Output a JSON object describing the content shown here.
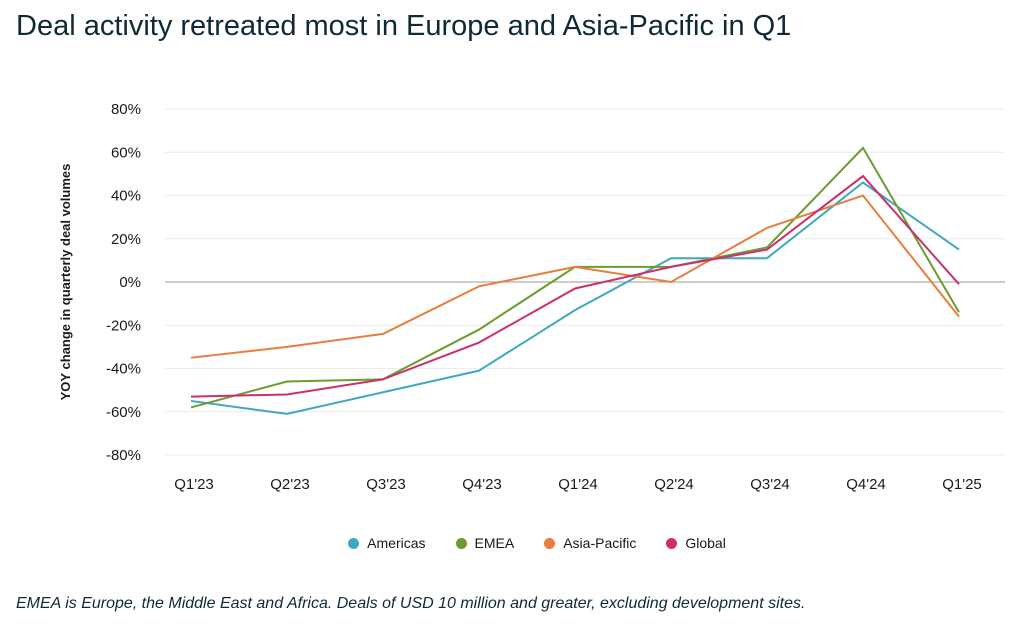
{
  "title": "Deal activity retreated most in Europe and Asia-Pacific in Q1",
  "note": "EMEA is Europe, the Middle East and Africa. Deals of USD 10 million and greater, excluding development sites.",
  "chart_data": {
    "type": "line",
    "title": "Deal activity retreated most in Europe and Asia-Pacific in Q1",
    "xlabel": "",
    "ylabel": "YOY change in quarterly deal volumes",
    "ylim": [
      -80,
      80
    ],
    "yticks": [
      80,
      60,
      40,
      20,
      0,
      -20,
      -40,
      -60,
      -80
    ],
    "ytick_labels": [
      "80%",
      "60%",
      "40%",
      "20%",
      "0%",
      "-20%",
      "-40%",
      "-60%",
      "-80%"
    ],
    "grid": true,
    "legend": "bottom",
    "categories": [
      "Q1'23",
      "Q2'23",
      "Q3'23",
      "Q4'23",
      "Q1'24",
      "Q2'24",
      "Q3'24",
      "Q4'24",
      "Q1'25"
    ],
    "series": [
      {
        "name": "Americas",
        "color": "#3ea8bd",
        "values": [
          -55,
          -61,
          -51,
          -41,
          -13,
          11,
          11,
          46,
          15
        ]
      },
      {
        "name": "EMEA",
        "color": "#6b9c2e",
        "values": [
          -58,
          -46,
          -45,
          -22,
          7,
          7,
          16,
          62,
          -14
        ]
      },
      {
        "name": "Asia-Pacific",
        "color": "#ea7d3c",
        "values": [
          -35,
          -30,
          -24,
          -2,
          7,
          0,
          25,
          40,
          -16
        ]
      },
      {
        "name": "Global",
        "color": "#cc2f6f",
        "values": [
          -53,
          -52,
          -45,
          -28,
          -3,
          7,
          15,
          49,
          -1
        ]
      }
    ]
  }
}
